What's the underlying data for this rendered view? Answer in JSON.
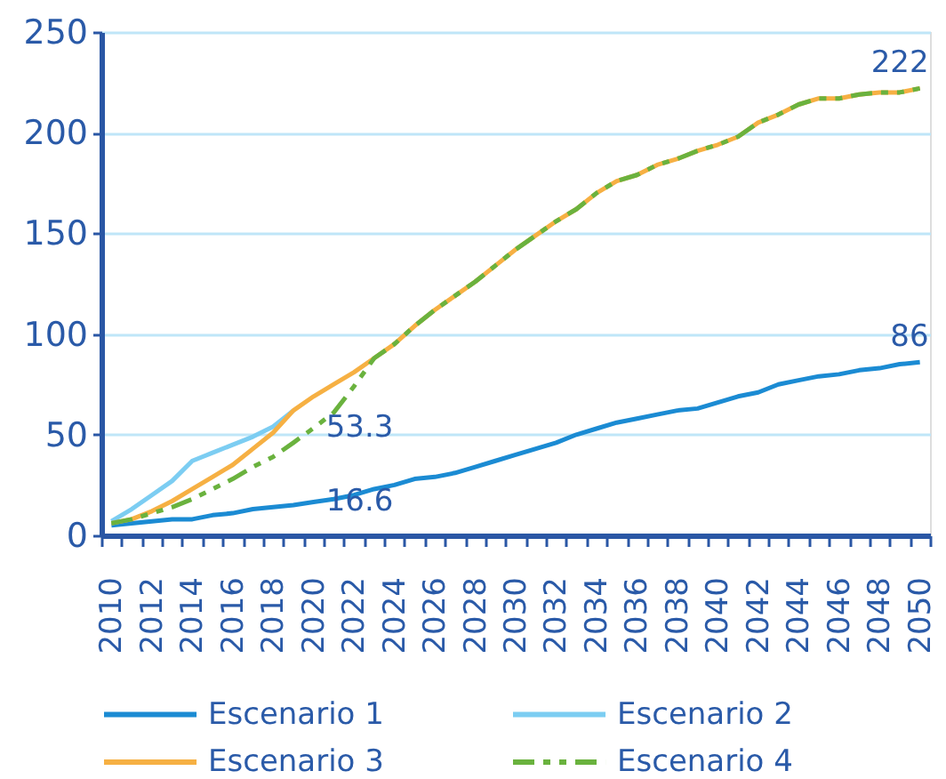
{
  "chart_data": {
    "type": "line",
    "categories": [
      "2010",
      null,
      "2012",
      null,
      "2014",
      null,
      "2016",
      null,
      "2018",
      null,
      "2020",
      null,
      "2022",
      null,
      "2024",
      null,
      "2026",
      null,
      "2028",
      null,
      "2030",
      null,
      "2032",
      null,
      "2034",
      null,
      "2036",
      null,
      "2038",
      null,
      "2040",
      null,
      "2042",
      null,
      "2044",
      null,
      "2046",
      null,
      "2048",
      null,
      "2050"
    ],
    "ylim": [
      0,
      250
    ],
    "yticks": [
      0,
      50,
      100,
      150,
      200,
      250
    ],
    "grid": "y",
    "legend": "bottom",
    "series": [
      {
        "name": "Escenario 1",
        "color": "#1b8bd3",
        "values": [
          5,
          6,
          7,
          8,
          8,
          10,
          11,
          13,
          14,
          15,
          16.6,
          18,
          20,
          23,
          25,
          28,
          29,
          31,
          34,
          37,
          40,
          43,
          46,
          50,
          53,
          56,
          58,
          60,
          62,
          63,
          66,
          69,
          71,
          75,
          77,
          79,
          80,
          82,
          83,
          85,
          86
        ],
        "value_labels": [
          null,
          null,
          null,
          null,
          null,
          null,
          null,
          null,
          null,
          null,
          "16.6",
          null,
          null,
          null,
          null,
          null,
          null,
          null,
          null,
          null,
          null,
          null,
          null,
          null,
          null,
          null,
          null,
          null,
          null,
          null,
          null,
          null,
          null,
          null,
          null,
          null,
          null,
          null,
          null,
          null,
          "86"
        ]
      },
      {
        "name": "Escenario 2",
        "color": "#7ccdf2",
        "values": [
          7,
          13,
          20,
          27,
          37,
          41,
          45,
          49,
          54,
          62,
          null,
          null,
          null,
          null,
          null,
          null,
          null,
          null,
          null,
          null,
          null,
          null,
          null,
          null,
          null,
          null,
          null,
          null,
          null,
          null,
          null,
          null,
          null,
          null,
          null,
          null,
          null,
          null,
          null,
          null,
          null
        ]
      },
      {
        "name": "Escenario 3",
        "color": "#f6b043",
        "values": [
          6,
          8,
          12,
          17,
          23,
          29,
          35,
          43,
          51,
          62,
          69,
          75,
          81,
          88,
          95,
          104,
          112,
          119,
          126,
          134,
          142,
          149,
          156,
          162,
          170,
          176,
          179,
          184,
          187,
          191,
          194,
          198,
          205,
          209,
          214,
          217,
          217,
          219,
          220,
          220,
          222
        ]
      },
      {
        "name": "Escenario 4",
        "color": "#6ab23e",
        "line_style": "dashed",
        "values": [
          6,
          8,
          11,
          14,
          18,
          23,
          28,
          34,
          39,
          46,
          53.3,
          61,
          74,
          88,
          95,
          104,
          112,
          119,
          126,
          134,
          142,
          149,
          156,
          162,
          170,
          176,
          179,
          184,
          187,
          191,
          194,
          198,
          205,
          209,
          214,
          217,
          217,
          219,
          220,
          220,
          222
        ],
        "value_labels": [
          null,
          null,
          null,
          null,
          null,
          null,
          null,
          null,
          null,
          null,
          "53.3",
          null,
          null,
          null,
          null,
          null,
          null,
          null,
          null,
          null,
          null,
          null,
          null,
          null,
          null,
          null,
          null,
          null,
          null,
          null,
          null,
          null,
          null,
          null,
          null,
          null,
          null,
          null,
          null,
          null,
          "222"
        ]
      }
    ]
  }
}
